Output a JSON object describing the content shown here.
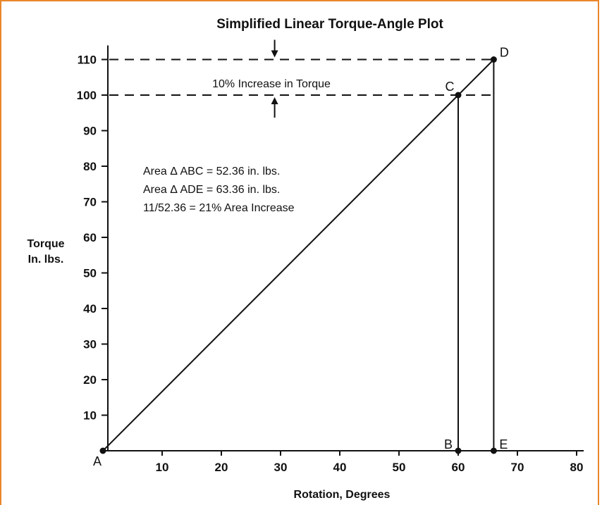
{
  "chart_data": {
    "type": "line",
    "title": "Simplified Linear Torque-Angle Plot",
    "xlabel": "Rotation, Degrees",
    "ylabel_lines": [
      "Torque",
      "In. lbs."
    ],
    "xlim": [
      0,
      80
    ],
    "ylim": [
      0,
      110
    ],
    "x_ticks": [
      10,
      20,
      30,
      40,
      50,
      60,
      70,
      80
    ],
    "y_ticks": [
      10,
      20,
      30,
      40,
      50,
      60,
      70,
      80,
      90,
      100,
      110
    ],
    "points": [
      {
        "label": "A",
        "x": 0,
        "y": 0
      },
      {
        "label": "B",
        "x": 60,
        "y": 0
      },
      {
        "label": "C",
        "x": 60,
        "y": 100
      },
      {
        "label": "D",
        "x": 66,
        "y": 110
      },
      {
        "label": "E",
        "x": 66,
        "y": 0
      }
    ],
    "reference_lines": [
      {
        "orientation": "horizontal",
        "y": 110,
        "style": "dashed"
      },
      {
        "orientation": "horizontal",
        "y": 100,
        "style": "dashed"
      }
    ],
    "increase_marker_x": 29,
    "annotations": {
      "increase": "10% Increase in Torque",
      "area_lines": [
        "Area Δ ABC = 52.36 in. lbs.",
        "Area Δ ADE = 63.36 in. lbs.",
        "11/52.36 = 21% Area Increase"
      ]
    },
    "colors": {
      "frame": "#e8862a",
      "ink": "#111111"
    }
  }
}
